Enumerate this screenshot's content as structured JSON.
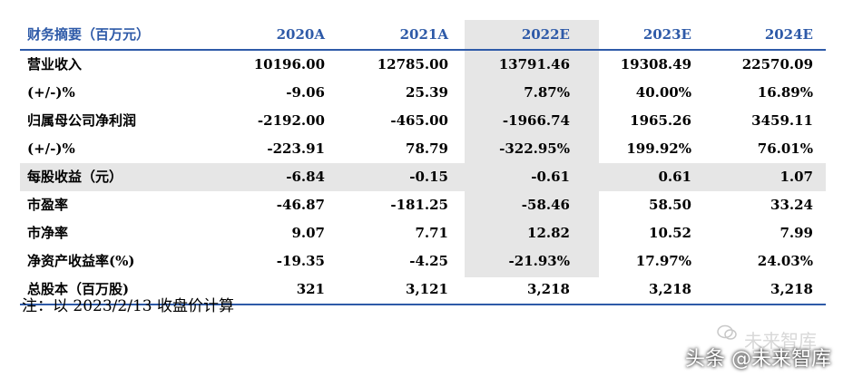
{
  "table": {
    "header": [
      "财务摘要（百万元）",
      "2020A",
      "2021A",
      "2022E",
      "2023E",
      "2024E"
    ],
    "rows": [
      {
        "label": "营业收入",
        "values": [
          "10196.00",
          "12785.00",
          "13791.46",
          "19308.49",
          "22570.09"
        ]
      },
      {
        "label": "(+/-)%",
        "values": [
          "-9.06",
          "25.39",
          "7.87%",
          "40.00%",
          "16.89%"
        ]
      },
      {
        "label": "归属母公司净利润",
        "values": [
          "-2192.00",
          "-465.00",
          "-1966.74",
          "1965.26",
          "3459.11"
        ]
      },
      {
        "label": "(+/-)%",
        "values": [
          "-223.91",
          "78.79",
          "-322.95%",
          "199.92%",
          "76.01%"
        ]
      },
      {
        "label": "每股收益（元）",
        "values": [
          "-6.84",
          "-0.15",
          "-0.61",
          "0.61",
          "1.07"
        ]
      },
      {
        "label": "市盈率",
        "values": [
          "-46.87",
          "-181.25",
          "-58.46",
          "58.50",
          "33.24"
        ]
      },
      {
        "label": "市净率",
        "values": [
          "9.07",
          "7.71",
          "12.82",
          "10.52",
          "7.99"
        ]
      },
      {
        "label": "净资产收益率(%)",
        "values": [
          "-19.35",
          "-4.25",
          "-21.93%",
          "17.97%",
          "24.03%"
        ]
      },
      {
        "label": "总股本（百万股)",
        "values": [
          "321",
          "3,121",
          "3,218",
          "3,218",
          "3,218"
        ]
      }
    ]
  },
  "note": "注：以 2023/2/13 收盘价计算",
  "watermark": {
    "brand": "未来智库",
    "credit": "头条 @未来智库"
  },
  "colors": {
    "header_text": "#2e5aa8",
    "rule": "#2e5aa8",
    "shade": "#e6e6e6"
  }
}
